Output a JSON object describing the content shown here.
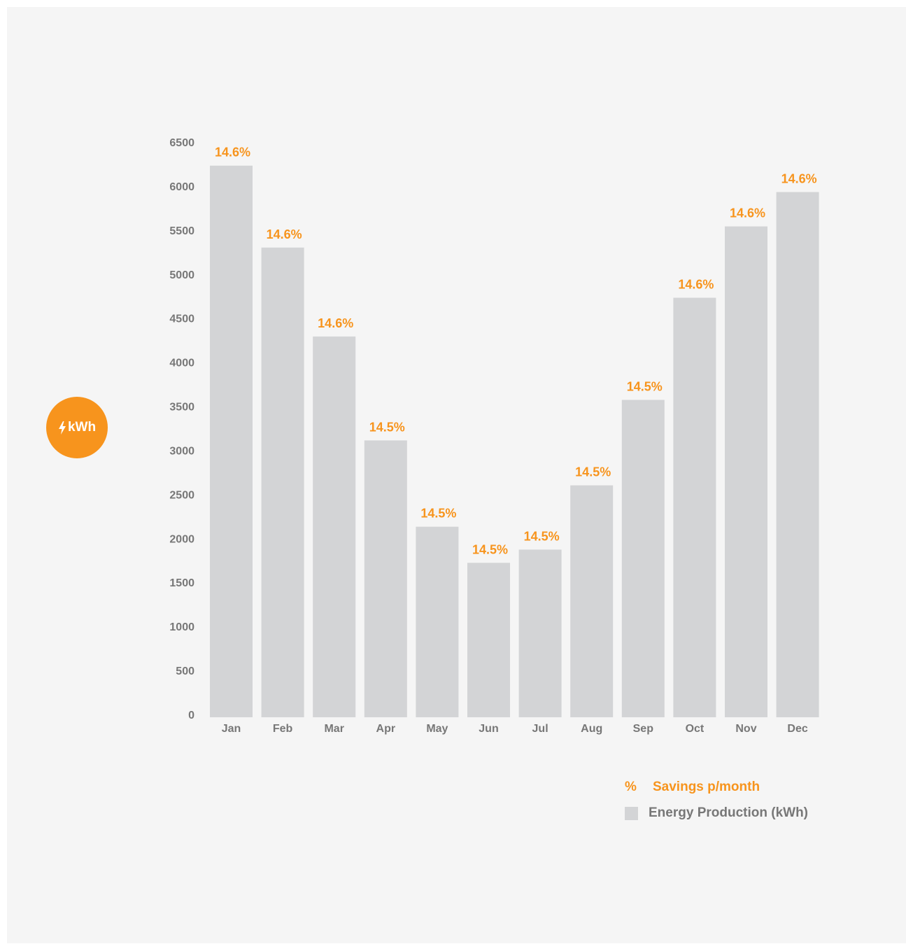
{
  "unit_badge": {
    "label": "kWh",
    "icon": "lightning-bolt-icon"
  },
  "colors": {
    "accent": "#f7941d",
    "bar": "#d3d4d6",
    "axis_text": "#777777",
    "background": "#f5f5f5"
  },
  "chart_data": {
    "type": "bar",
    "title": "",
    "xlabel": "",
    "ylabel": "",
    "categories": [
      "Jan",
      "Feb",
      "Mar",
      "Apr",
      "May",
      "Jun",
      "Jul",
      "Aug",
      "Sep",
      "Oct",
      "Nov",
      "Dec"
    ],
    "series": [
      {
        "name": "Energy Production (kWh)",
        "values": [
          6240,
          5310,
          4300,
          3120,
          2140,
          1730,
          1880,
          2610,
          3580,
          4740,
          5550,
          5940
        ]
      }
    ],
    "data_labels": [
      "14.6%",
      "14.6%",
      "14.6%",
      "14.5%",
      "14.5%",
      "14.5%",
      "14.5%",
      "14.5%",
      "14.5%",
      "14.6%",
      "14.6%",
      "14.6%"
    ],
    "yticks": [
      "0",
      "500",
      "1000",
      "1500",
      "2000",
      "2500",
      "3000",
      "3500",
      "4000",
      "4500",
      "5000",
      "5500",
      "6000",
      "6500"
    ],
    "ylim": [
      0,
      6500
    ],
    "grid": false,
    "legend_position": "bottom-right"
  },
  "legend": {
    "savings_symbol": "%",
    "savings_label": "Savings p/month",
    "energy_label": "Energy Production (kWh)"
  }
}
